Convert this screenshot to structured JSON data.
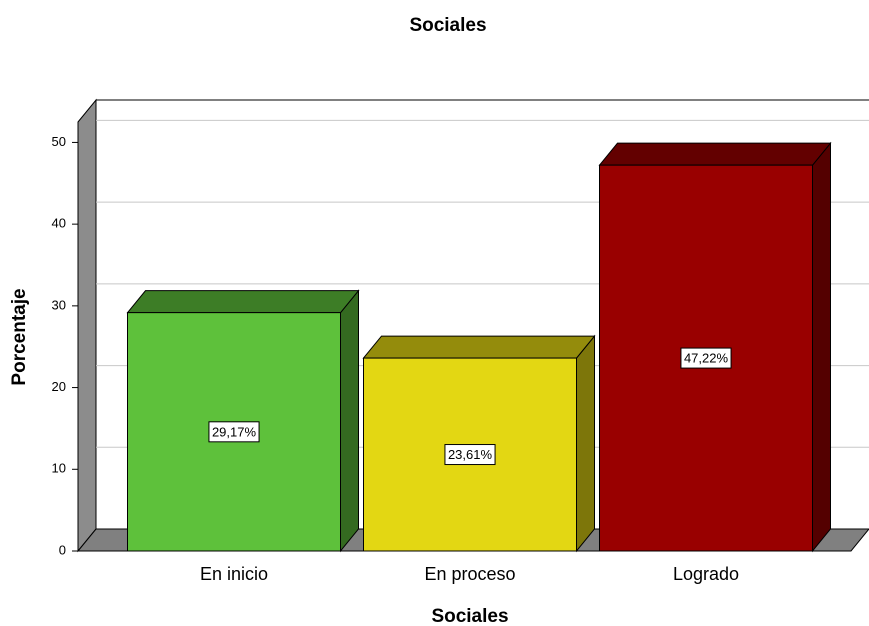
{
  "chart_data": {
    "type": "bar3d",
    "title": "Sociales",
    "x_label": "Sociales",
    "y_label": "Porcentaje",
    "categories": [
      "En inicio",
      "En proceso",
      "Logrado"
    ],
    "values": [
      29.17,
      23.61,
      47.22
    ],
    "value_labels": [
      "29,17%",
      "23,61%",
      "47,22%"
    ],
    "colors": [
      "#5ec13b",
      "#e3d713",
      "#990000"
    ],
    "ylim": [
      0,
      52.5
    ],
    "yticks": [
      0,
      10,
      20,
      30,
      40,
      50
    ],
    "grid": true
  }
}
